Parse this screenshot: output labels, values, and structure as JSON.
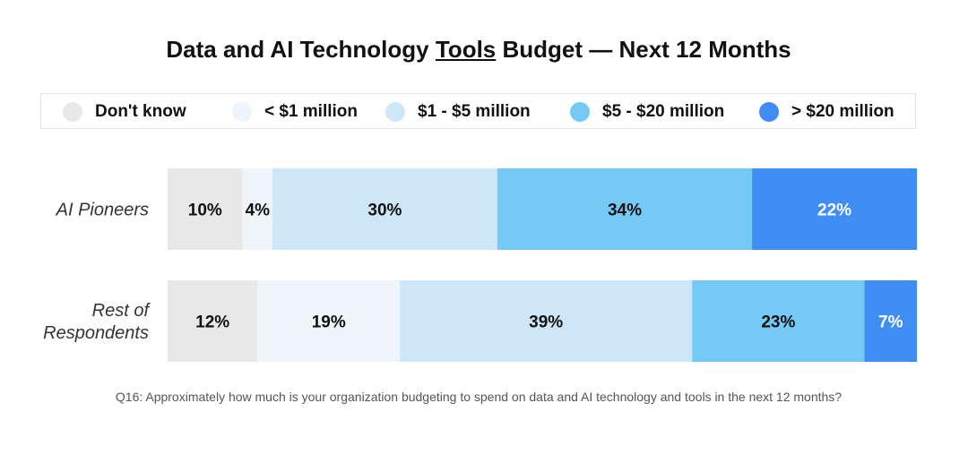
{
  "title": {
    "part1": "Data and AI Technology ",
    "part2": "Tools",
    "part3": " Budget — Next 12 Months"
  },
  "legend": [
    {
      "label": "Don't know",
      "color": "#e8e8e8"
    },
    {
      "label": "< $1 million",
      "color": "#eef6fc"
    },
    {
      "label": "$1 - $5 million",
      "color": "#cde7f8"
    },
    {
      "label": "$5 - $20 million",
      "color": "#74c9f5"
    },
    {
      "label": "> $20 million",
      "color": "#3f8ef3"
    }
  ],
  "question": "Q16: Approximately how much is your organization budgeting to spend on data and AI technology and tools in the next 12 months?",
  "chart_data": {
    "type": "bar",
    "orientation": "horizontal",
    "stacked": true,
    "percent": true,
    "categories": [
      [
        "AI Pioneers"
      ],
      [
        "Rest of",
        "Respondents"
      ]
    ],
    "series": [
      {
        "name": "Don't know",
        "values": [
          10,
          12
        ],
        "color": "#e8e8e8"
      },
      {
        "name": "< $1 million",
        "values": [
          4,
          19
        ],
        "color": "#eef6fc"
      },
      {
        "name": "$1 - $5 million",
        "values": [
          30,
          39
        ],
        "color": "#cde7f8"
      },
      {
        "name": "$5 - $20 million",
        "values": [
          34,
          23
        ],
        "color": "#74c9f5"
      },
      {
        "name": "> $20 million",
        "values": [
          22,
          7
        ],
        "color": "#3f8ef3"
      }
    ],
    "data_labels": [
      [
        "10%",
        "4%",
        "30%",
        "34%",
        "22%"
      ],
      [
        "12%",
        "19%",
        "39%",
        "23%",
        "7%"
      ]
    ],
    "legend_position": "top",
    "grid": false
  }
}
